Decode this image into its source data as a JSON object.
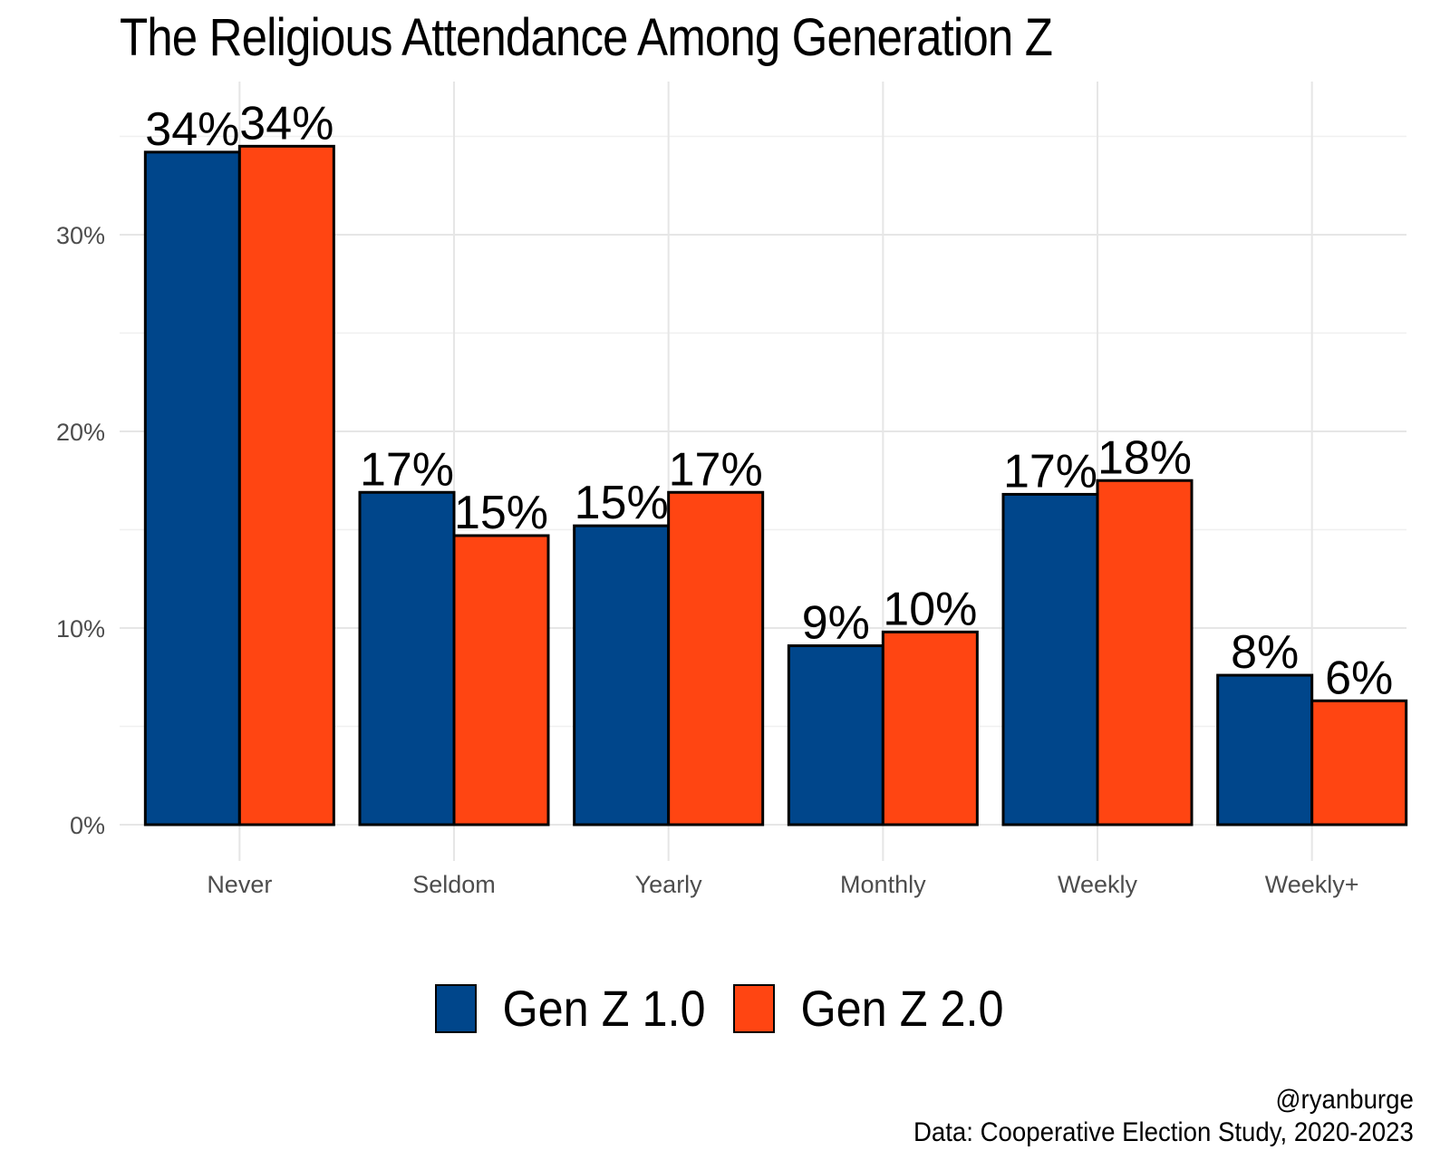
{
  "chart_data": {
    "type": "bar",
    "title": "The Religious Attendance Among Generation Z",
    "categories": [
      "Never",
      "Seldom",
      "Yearly",
      "Monthly",
      "Weekly",
      "Weekly+"
    ],
    "series": [
      {
        "name": "Gen Z 1.0",
        "color": "#00468b",
        "values": [
          34.2,
          16.9,
          15.2,
          9.1,
          16.8,
          7.6
        ],
        "labels": [
          "34%",
          "17%",
          "15%",
          "9%",
          "17%",
          "8%"
        ]
      },
      {
        "name": "Gen Z 2.0",
        "color": "#ff4512",
        "values": [
          34.5,
          14.7,
          16.9,
          9.8,
          17.5,
          6.3
        ],
        "labels": [
          "34%",
          "15%",
          "17%",
          "10%",
          "18%",
          "6%"
        ]
      }
    ],
    "yticks": [
      0,
      10,
      20,
      30
    ],
    "ytick_labels": [
      "0%",
      "10%",
      "20%",
      "30%"
    ],
    "ylim": [
      0,
      37
    ],
    "grid": true,
    "legend_position": "bottom"
  },
  "credits": {
    "author": "@ryanburge",
    "source": "Data: Cooperative Election Study, 2020-2023"
  }
}
